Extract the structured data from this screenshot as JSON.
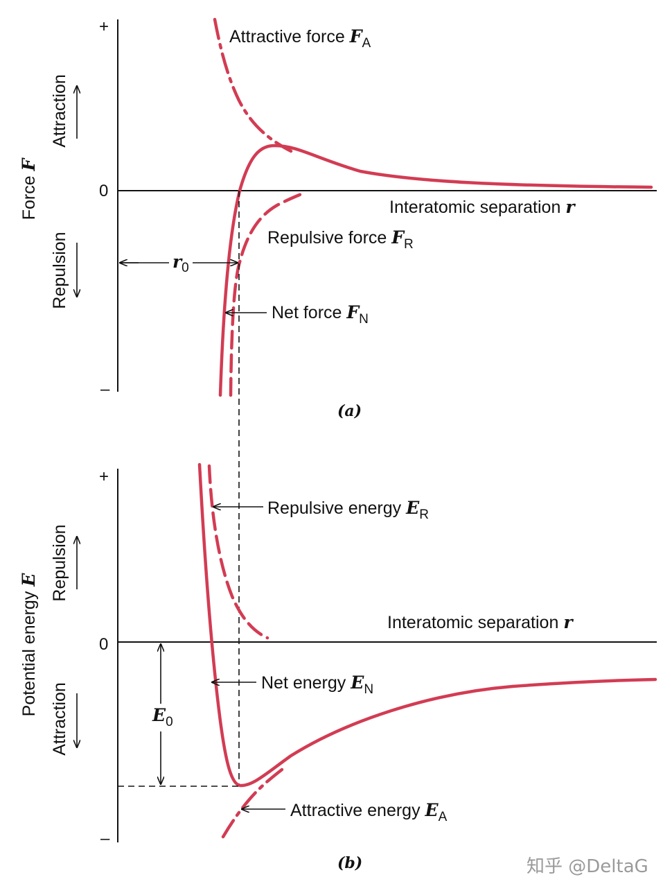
{
  "panel_a": {
    "tag": "(a)",
    "y_axis": {
      "title": "Force",
      "symbol": "F",
      "plus": "+",
      "zero": "0",
      "minus": "–",
      "up_label": "Attraction",
      "down_label": "Repulsion"
    },
    "x_axis": {
      "label": "Interatomic separation",
      "symbol": "r"
    },
    "labels": {
      "attractive": {
        "text": "Attractive force",
        "symbol": "F",
        "sub": "A"
      },
      "repulsive": {
        "text": "Repulsive force",
        "symbol": "F",
        "sub": "R"
      },
      "net": {
        "text": "Net force",
        "symbol": "F",
        "sub": "N"
      },
      "r0": {
        "symbol": "r",
        "sub": "0"
      }
    }
  },
  "panel_b": {
    "tag": "(b)",
    "y_axis": {
      "title": "Potential energy",
      "symbol": "E",
      "plus": "+",
      "zero": "0",
      "minus": "–",
      "up_label": "Repulsion",
      "down_label": "Attraction"
    },
    "x_axis": {
      "label": "Interatomic separation",
      "symbol": "r"
    },
    "labels": {
      "repulsive": {
        "text": "Repulsive energy",
        "symbol": "E",
        "sub": "R"
      },
      "net": {
        "text": "Net energy",
        "symbol": "E",
        "sub": "N"
      },
      "attractive": {
        "text": "Attractive energy",
        "symbol": "E",
        "sub": "A"
      },
      "e0": {
        "symbol": "E",
        "sub": "0"
      }
    }
  },
  "watermark": "知乎 @DeltaG",
  "colors": {
    "curve": "#d23c53",
    "ink": "#111111"
  }
}
